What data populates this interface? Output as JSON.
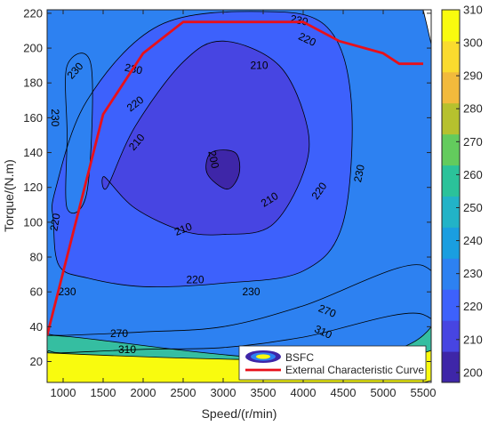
{
  "chart_data": {
    "type": "heatmap",
    "subtype": "filled-contour",
    "xlabel": "Speed/(r/min)",
    "ylabel": "Torque/(N.m)",
    "xlim": [
      800,
      5600
    ],
    "ylim": [
      8,
      222
    ],
    "xticks": [
      1000,
      1500,
      2000,
      2500,
      3000,
      3500,
      4000,
      4500,
      5000,
      5500
    ],
    "yticks": [
      20,
      40,
      60,
      80,
      100,
      120,
      140,
      160,
      180,
      200,
      220
    ],
    "colorbar": {
      "range": [
        197,
        310
      ],
      "ticks": [
        200,
        210,
        220,
        230,
        240,
        250,
        260,
        270,
        280,
        290,
        300,
        310
      ],
      "colors": [
        "#3e26a8",
        "#4745e2",
        "#3d61fc",
        "#2d81f1",
        "#1a9ee0",
        "#22b3c7",
        "#2bc29a",
        "#63cb5d",
        "#b6c12e",
        "#f2ba3c",
        "#fadb2e",
        "#f9fb0e"
      ]
    },
    "contour_regions": [
      {
        "level": 310,
        "color": "#f9fb0e",
        "x": [
          800,
          5500,
          5500,
          4000,
          3000,
          2000,
          1000,
          800
        ],
        "y": [
          8,
          8,
          47,
          34,
          28,
          27,
          25,
          25
        ]
      },
      {
        "level": 270,
        "color": "#35bea1",
        "x": [
          800,
          5500,
          5500,
          4000,
          3000,
          2000,
          1000,
          800
        ],
        "y": [
          25,
          25,
          75,
          52,
          40,
          37,
          35,
          35
        ]
      },
      {
        "level": 230,
        "color": "#2d81f1",
        "x": [
          800,
          5500,
          5500,
          4500,
          3500,
          2500,
          1500,
          800,
          800
        ],
        "y": [
          35,
          35,
          222,
          222,
          222,
          222,
          222,
          222,
          35
        ]
      },
      {
        "level": 220,
        "color": "#3d61fc",
        "x": [
          900,
          1300,
          2200,
          3500,
          4300,
          4600,
          4500,
          4000,
          3000,
          2000,
          1300,
          950,
          880
        ],
        "y": [
          118,
          170,
          213,
          221,
          212,
          170,
          100,
          72,
          65,
          63,
          68,
          75,
          100
        ]
      },
      {
        "level": 210,
        "color": "#4745e2",
        "x": [
          1550,
          1900,
          2500,
          3000,
          3700,
          4050,
          4000,
          3600,
          3000,
          2500,
          1900,
          1520
        ],
        "y": [
          120,
          155,
          192,
          204,
          190,
          155,
          128,
          98,
          93,
          95,
          108,
          126
        ]
      },
      {
        "level": 200,
        "color": "#3e26a8",
        "x": [
          2850,
          3150,
          3200,
          3050,
          2800
        ],
        "y": [
          140,
          140,
          128,
          119,
          128
        ]
      },
      {
        "level": 230,
        "color": "#2d81f1",
        "x": [
          1050,
          1350,
          1300,
          1050,
          1050
        ],
        "y": [
          190,
          190,
          118,
          108,
          150
        ]
      }
    ],
    "contour_labels": [
      {
        "text": "230",
        "x": 1150,
        "y": 187,
        "angle": -48
      },
      {
        "text": "230",
        "x": 1880,
        "y": 188,
        "angle": 12
      },
      {
        "text": "220",
        "x": 1900,
        "y": 168,
        "angle": -38
      },
      {
        "text": "230",
        "x": 900,
        "y": 160,
        "angle": 90
      },
      {
        "text": "210",
        "x": 1920,
        "y": 146,
        "angle": -50
      },
      {
        "text": "200",
        "x": 2880,
        "y": 136,
        "angle": 78
      },
      {
        "text": "210",
        "x": 3450,
        "y": 190,
        "angle": 0
      },
      {
        "text": "230",
        "x": 3950,
        "y": 216,
        "angle": 12
      },
      {
        "text": "220",
        "x": 4050,
        "y": 205,
        "angle": 25
      },
      {
        "text": "210",
        "x": 3580,
        "y": 113,
        "angle": -32
      },
      {
        "text": "220",
        "x": 4200,
        "y": 118,
        "angle": -55
      },
      {
        "text": "230",
        "x": 4700,
        "y": 128,
        "angle": -78
      },
      {
        "text": "220",
        "x": 900,
        "y": 100,
        "angle": -80
      },
      {
        "text": "210",
        "x": 2500,
        "y": 96,
        "angle": -22
      },
      {
        "text": "220",
        "x": 2650,
        "y": 67,
        "angle": 0
      },
      {
        "text": "230",
        "x": 1050,
        "y": 60,
        "angle": 0
      },
      {
        "text": "230",
        "x": 3350,
        "y": 60,
        "angle": 0
      },
      {
        "text": "270",
        "x": 1700,
        "y": 36,
        "angle": 0
      },
      {
        "text": "270",
        "x": 4300,
        "y": 49,
        "angle": 22
      },
      {
        "text": "310",
        "x": 1800,
        "y": 27,
        "angle": 0
      },
      {
        "text": "310",
        "x": 4250,
        "y": 37,
        "angle": 25
      }
    ],
    "series": [
      {
        "name": "External Characteristic Curve",
        "color": "#e8101a",
        "x": [
          800,
          1500,
          2000,
          2500,
          3000,
          3500,
          4000,
          4450,
          5000,
          5200,
          5500
        ],
        "y": [
          35,
          162,
          197,
          215,
          215,
          215,
          215,
          204,
          197,
          191,
          191
        ]
      }
    ],
    "legend": {
      "position": "bottom-right",
      "entries": [
        {
          "name": "BSFC",
          "type": "contour"
        },
        {
          "name": "External Characteristic Curve",
          "type": "line",
          "color": "#e8101a"
        }
      ]
    },
    "grid": false
  }
}
